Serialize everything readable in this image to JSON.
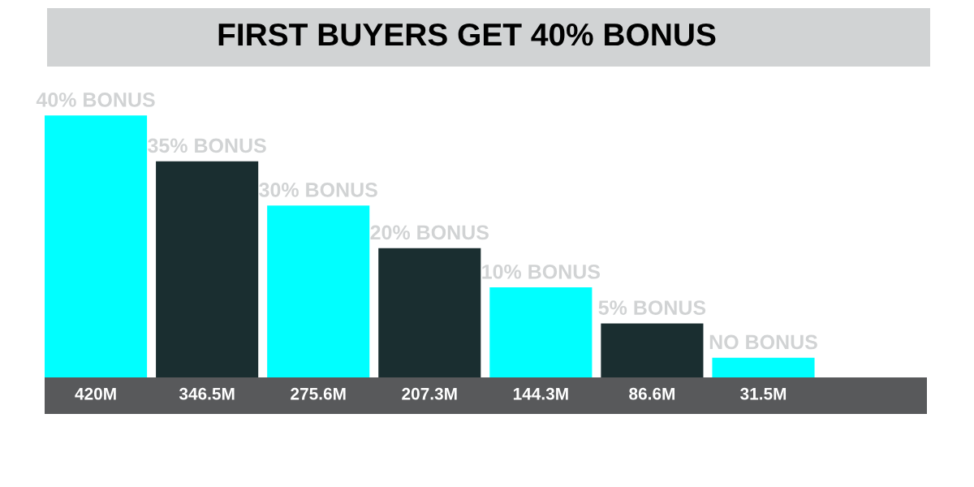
{
  "chart_data": {
    "type": "bar",
    "title": "FIRST BUYERS GET 40% BONUS",
    "categories": [
      "40% BONUS",
      "35% BONUS",
      "30% BONUS",
      "20% BONUS",
      "10% BONUS",
      "5% BONUS",
      "NO BONUS"
    ],
    "values": [
      420,
      346.5,
      275.6,
      207.3,
      144.3,
      86.6,
      31.5
    ],
    "colors": [
      "#00ffff",
      "#1a2e30",
      "#00ffff",
      "#1a2e30",
      "#00ffff",
      "#1a2e30",
      "#00ffff"
    ],
    "value_labels": [
      "420M",
      "346.5M",
      "275.6M",
      "207.3M",
      "144.3M",
      "86.6M",
      "31.5M"
    ]
  }
}
